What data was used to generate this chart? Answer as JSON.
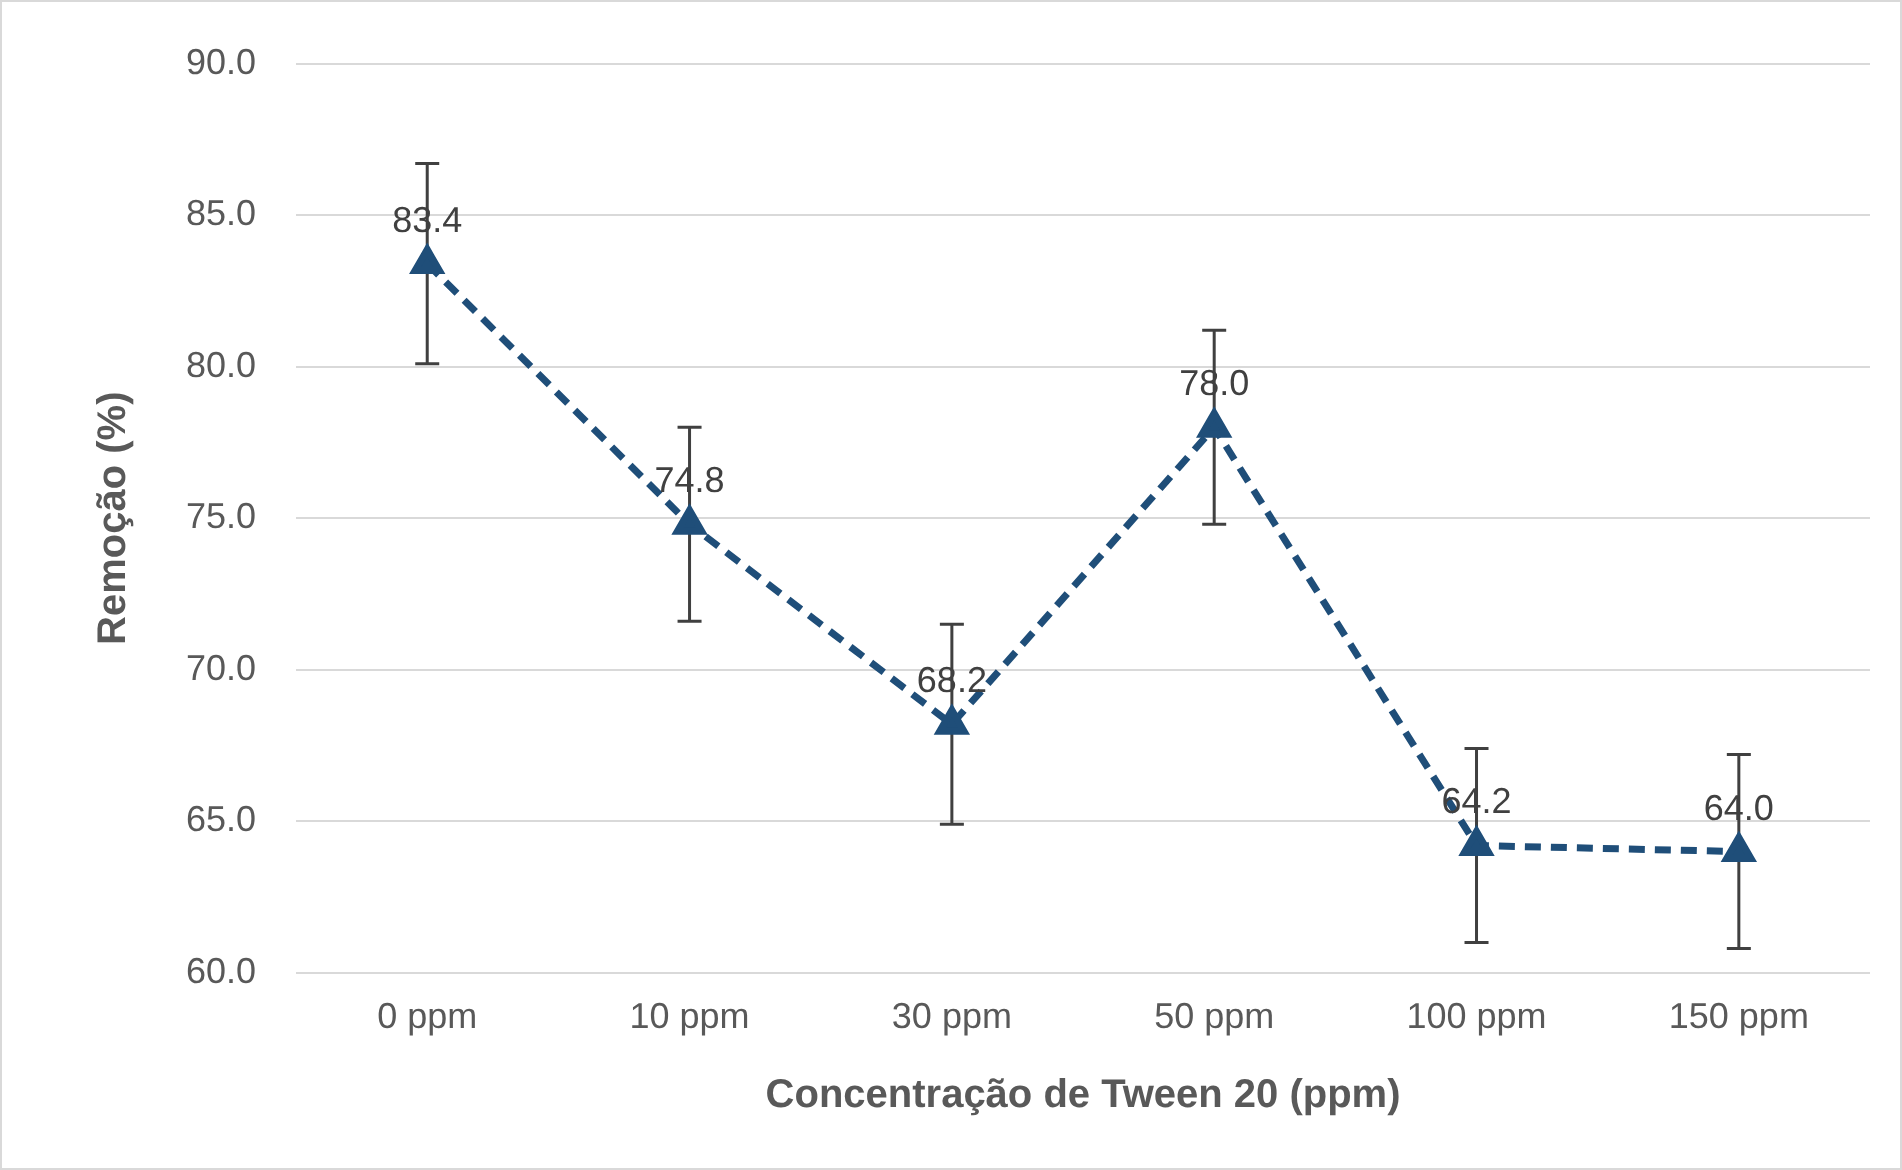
{
  "chart_data": {
    "type": "line",
    "xlabel": "Concentração de Tween 20 (ppm)",
    "ylabel": "Remoção (%)",
    "categories": [
      "0 ppm",
      "10 ppm",
      "30 ppm",
      "50 ppm",
      "100 ppm",
      "150 ppm"
    ],
    "series": [
      {
        "color": "#1f4e79",
        "values": [
          83.4,
          74.8,
          68.2,
          78.0,
          64.2,
          64.0
        ],
        "errors": [
          3.3,
          3.2,
          3.3,
          3.2,
          3.2,
          3.2
        ],
        "value_labels": [
          "83.4",
          "74.8",
          "68.2",
          "78.0",
          "64.2",
          "64.0"
        ]
      }
    ],
    "ylim": [
      60,
      90
    ],
    "yticks": [
      {
        "value": 60,
        "label": "60.0"
      },
      {
        "value": 65,
        "label": "65.0"
      },
      {
        "value": 70,
        "label": "70.0"
      },
      {
        "value": 75,
        "label": "75.0"
      },
      {
        "value": 80,
        "label": "80.0"
      },
      {
        "value": 85,
        "label": "85.0"
      },
      {
        "value": 90,
        "label": "90.0"
      }
    ],
    "grid": "y",
    "legend": false,
    "marker": "triangle",
    "line_style": "dashed"
  }
}
